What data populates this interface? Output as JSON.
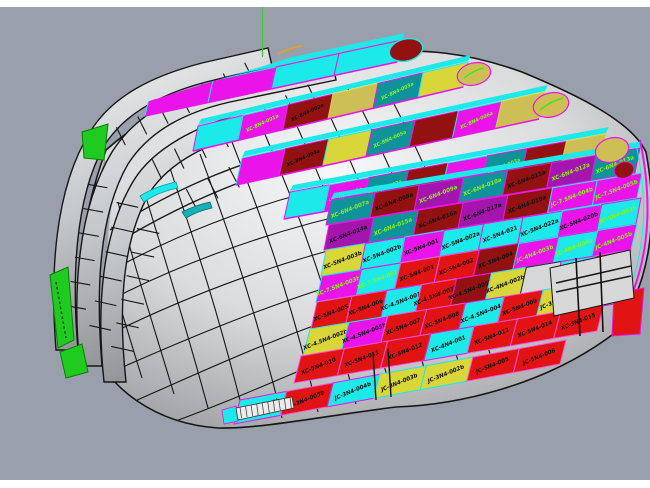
{
  "viewport": {
    "kind": "3d-cad-shaded-view",
    "background": "#9aa0ab",
    "frame_color": "#ffffff"
  },
  "palette": {
    "bg": "#9aa0ab",
    "frame": "#ffffff",
    "wire": "#161616",
    "axis_green": "#2fd32f",
    "patch_green": "#1ecb1e",
    "gray": "#d6d7d9",
    "red": "#e21313",
    "dark_red": "#941111",
    "magenta": "#ea14ea",
    "purple": "#a315ad",
    "cyan": "#1ce9e9",
    "teal": "#0f939b",
    "yellow": "#d9d63a",
    "khaki": "#cdbf55",
    "label_black": "#101010",
    "label_green": "#8af312"
  },
  "bands": [
    {
      "id": "strake-1",
      "cells": [
        {
          "color": "magenta",
          "label": "",
          "text_color": "black"
        },
        {
          "color": "magenta",
          "label": "",
          "text_color": "black"
        },
        {
          "color": "cyan",
          "label": "",
          "text_color": "black"
        },
        {
          "color": "cyan",
          "label": "",
          "text_color": "black"
        }
      ]
    },
    {
      "id": "strake-2",
      "cells": [
        {
          "color": "cyan",
          "label": "",
          "text_color": "black"
        },
        {
          "color": "magenta",
          "label": "XC-8N4-001a",
          "text_color": "green"
        },
        {
          "color": "dark_red",
          "label": "XC-8N4-002a",
          "text_color": "black"
        },
        {
          "color": "khaki",
          "label": "",
          "text_color": "black"
        },
        {
          "color": "teal",
          "label": "XC-8N4-003a",
          "text_color": "green"
        },
        {
          "color": "yellow",
          "label": "",
          "text_color": "black"
        }
      ]
    },
    {
      "id": "strake-3",
      "cells": [
        {
          "color": "magenta",
          "label": "",
          "text_color": "black"
        },
        {
          "color": "dark_red",
          "label": "XC-8N4-004a",
          "text_color": "black"
        },
        {
          "color": "yellow",
          "label": "",
          "text_color": "black"
        },
        {
          "color": "teal",
          "label": "XC-8N4-005a",
          "text_color": "green"
        },
        {
          "color": "dark_red",
          "label": "",
          "text_color": "black"
        },
        {
          "color": "magenta",
          "label": "XC-8N4-006a",
          "text_color": "green"
        },
        {
          "color": "khaki",
          "label": "",
          "text_color": "black"
        }
      ]
    },
    {
      "id": "strake-4",
      "cells": [
        {
          "color": "cyan",
          "label": "",
          "text_color": "black"
        },
        {
          "color": "magenta",
          "label": "XC-7N4-001a",
          "text_color": "green"
        },
        {
          "color": "teal",
          "label": "XC-7N4-002a",
          "text_color": "green"
        },
        {
          "color": "dark_red",
          "label": "",
          "text_color": "black"
        },
        {
          "color": "magenta",
          "label": "",
          "text_color": "black"
        },
        {
          "color": "teal",
          "label": "XC-7N4-003a",
          "text_color": "green"
        },
        {
          "color": "dark_red",
          "label": "",
          "text_color": "black"
        },
        {
          "color": "khaki",
          "label": "",
          "text_color": "black"
        }
      ]
    },
    {
      "id": "row-1",
      "cells": [
        {
          "color": "teal",
          "label": "XC-6N4-007a",
          "text_color": "green"
        },
        {
          "color": "dark_red",
          "label": "XC-6N4-008a",
          "text_color": "black"
        },
        {
          "color": "purple",
          "label": "XC-6N4-009a",
          "text_color": "green"
        },
        {
          "color": "teal",
          "label": "XC-6N4-010a",
          "text_color": "green"
        },
        {
          "color": "dark_red",
          "label": "XC-6N4-011a",
          "text_color": "black"
        },
        {
          "color": "purple",
          "label": "XC-6N4-012a",
          "text_color": "green"
        },
        {
          "color": "teal",
          "label": "XC-6N4-013a",
          "text_color": "green"
        }
      ]
    },
    {
      "id": "row-2",
      "cells": [
        {
          "color": "purple",
          "label": "XC-6N4-014a",
          "text_color": "black"
        },
        {
          "color": "teal",
          "label": "XC-6N4-015a",
          "text_color": "green"
        },
        {
          "color": "dark_red",
          "label": "XC-6N4-016a",
          "text_color": "black"
        },
        {
          "color": "purple",
          "label": "XC-6N4-017a",
          "text_color": "black"
        },
        {
          "color": "dark_red",
          "label": "XC-6N4-018a",
          "text_color": "black"
        },
        {
          "color": "magenta",
          "label": "JC-7.5N4-004b",
          "text_color": "green"
        },
        {
          "color": "magenta",
          "label": "JC-7.5N4-005b",
          "text_color": "green"
        }
      ]
    },
    {
      "id": "row-3",
      "cells": [
        {
          "color": "yellow",
          "label": "XC-5N4-003b",
          "text_color": "black"
        },
        {
          "color": "cyan",
          "label": "XC-5N4-002b",
          "text_color": "black"
        },
        {
          "color": "magenta",
          "label": "XC-5N4-001",
          "text_color": "black"
        },
        {
          "color": "cyan",
          "label": "XC-5N4-002a",
          "text_color": "black"
        },
        {
          "color": "cyan",
          "label": "XC-5N4-021",
          "text_color": "black"
        },
        {
          "color": "cyan",
          "label": "XC-5N4-022a",
          "text_color": "black"
        },
        {
          "color": "magenta",
          "label": "XC-5N4-020b",
          "text_color": "black"
        },
        {
          "color": "cyan",
          "label": "JC-5N4-003b",
          "text_color": "green"
        }
      ]
    },
    {
      "id": "row-4",
      "cells": [
        {
          "color": "magenta",
          "label": "XC-7.5N4-003b",
          "text_color": "green"
        },
        {
          "color": "cyan",
          "label": "XC-7.5N4-001",
          "text_color": "green"
        },
        {
          "color": "red",
          "label": "XC-5N4-001",
          "text_color": "black"
        },
        {
          "color": "red",
          "label": "XC-5N4-002",
          "text_color": "black"
        },
        {
          "color": "dark_red",
          "label": "XC-5N4-004",
          "text_color": "black"
        },
        {
          "color": "magenta",
          "label": "JC-4N4-003b",
          "text_color": "green"
        },
        {
          "color": "cyan",
          "label": "JC-4N4-004b",
          "text_color": "green"
        },
        {
          "color": "magenta",
          "label": "JC-4N4-005b",
          "text_color": "green"
        }
      ]
    },
    {
      "id": "row-5",
      "cells": [
        {
          "color": "red",
          "label": "XC-5N4-005",
          "text_color": "black"
        },
        {
          "color": "red",
          "label": "XC-5N4-006",
          "text_color": "black"
        },
        {
          "color": "cyan",
          "label": "XC-4.5N4-001",
          "text_color": "black"
        },
        {
          "color": "red",
          "label": "XC-4.5N4-003b",
          "text_color": "black"
        },
        {
          "color": "dark_red",
          "label": "XC-4.5N4-005b",
          "text_color": "black"
        },
        {
          "color": "yellow",
          "label": "XC-4N4-002b",
          "text_color": "black"
        },
        {
          "color": "gray",
          "label": "",
          "text_color": "black"
        },
        {
          "color": "cyan",
          "label": "JC-3N4-006b",
          "text_color": "green"
        },
        {
          "color": "red",
          "label": "",
          "text_color": "black"
        }
      ]
    },
    {
      "id": "row-6",
      "cells": [
        {
          "color": "yellow",
          "label": "XC-4.5N4-002b",
          "text_color": "black"
        },
        {
          "color": "magenta",
          "label": "XC-4.5N4-005b",
          "text_color": "black"
        },
        {
          "color": "red",
          "label": "XC-5N4-007",
          "text_color": "black"
        },
        {
          "color": "red",
          "label": "XC-5N4-008",
          "text_color": "black"
        },
        {
          "color": "cyan",
          "label": "XC-4.5N4-004",
          "text_color": "black"
        },
        {
          "color": "red",
          "label": "XC-5N4-009",
          "text_color": "black"
        },
        {
          "color": "yellow",
          "label": "JC-3N4-002b",
          "text_color": "black"
        },
        {
          "color": "cyan",
          "label": "JC-3N4-008b",
          "text_color": "green"
        }
      ]
    },
    {
      "id": "row-7",
      "cells": [
        {
          "color": "red",
          "label": "XC-5N4-010",
          "text_color": "black"
        },
        {
          "color": "red",
          "label": "XC-5N4-011",
          "text_color": "black"
        },
        {
          "color": "red",
          "label": "XC-5N4-012",
          "text_color": "black"
        },
        {
          "color": "cyan",
          "label": "XC-4N4-001",
          "text_color": "black"
        },
        {
          "color": "red",
          "label": "XC-5N4-013",
          "text_color": "black"
        },
        {
          "color": "red",
          "label": "XC-5N4-014",
          "text_color": "black"
        },
        {
          "color": "red",
          "label": "XC-5N4-015",
          "text_color": "black"
        }
      ]
    },
    {
      "id": "row-bottom",
      "cells": [
        {
          "color": "cyan",
          "label": "JPD-3N4-000b",
          "text_color": "black"
        },
        {
          "color": "red",
          "label": "JC-3N4-005b",
          "text_color": "black"
        },
        {
          "color": "cyan",
          "label": "JC-3N4-004b",
          "text_color": "black"
        },
        {
          "color": "yellow",
          "label": "JC-3N4-003b",
          "text_color": "black"
        },
        {
          "color": "yellow",
          "label": "JC-3N4-002b",
          "text_color": "black"
        },
        {
          "color": "red",
          "label": "JC-5N4-005",
          "text_color": "black"
        },
        {
          "color": "red",
          "label": "JC-5N4-006",
          "text_color": "black"
        }
      ]
    }
  ]
}
